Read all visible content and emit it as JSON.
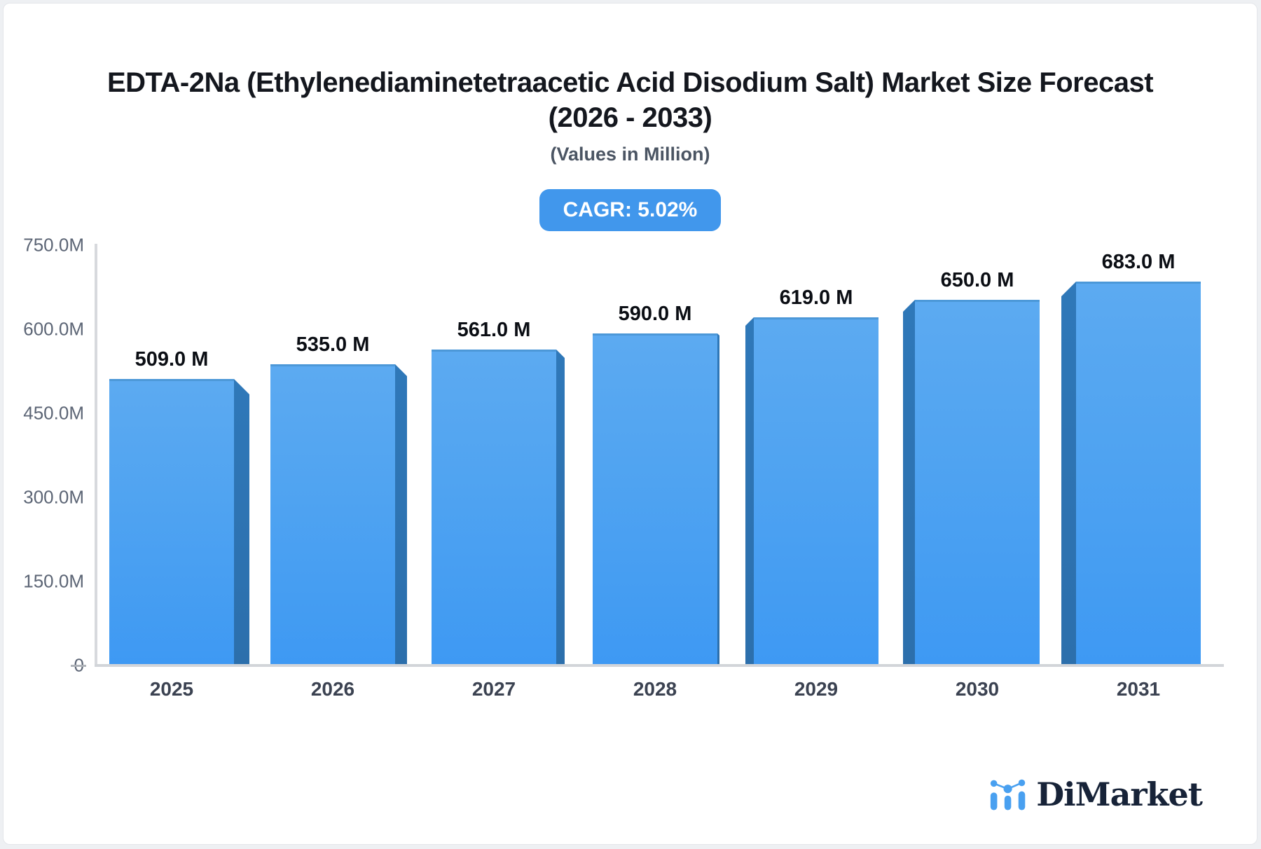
{
  "page": {
    "background": "#eef0f3",
    "card_background": "#ffffff"
  },
  "header": {
    "title_line1": "EDTA-2Na (Ethylenediaminetetraacetic Acid Disodium Salt) Market Size Forecast",
    "title_line2": "(2026 - 2033)",
    "subtitle": "(Values in Million)",
    "cagr_badge": "CAGR: 5.02%",
    "cagr_badge_color": "#4197EC"
  },
  "chart_data": {
    "type": "bar",
    "title": "EDTA-2Na (Ethylenediaminetetraacetic Acid Disodium Salt) Market Size Forecast (2026 - 2033)",
    "subtitle": "(Values in Million)",
    "unit": "Million",
    "categories": [
      "2025",
      "2026",
      "2027",
      "2028",
      "2029",
      "2030",
      "2031"
    ],
    "values": [
      509,
      535,
      561,
      590,
      619,
      650,
      683
    ],
    "bar_labels": [
      "509.0 M",
      "535.0 M",
      "561.0 M",
      "590.0 M",
      "619.0 M",
      "650.0 M",
      "683.0 M"
    ],
    "ylim": [
      0,
      750
    ],
    "yticks": [
      {
        "value": 0,
        "label": "0"
      },
      {
        "value": 150,
        "label": "150.0M"
      },
      {
        "value": 300,
        "label": "300.0M"
      },
      {
        "value": 450,
        "label": "450.0M"
      },
      {
        "value": 600,
        "label": "600.0M"
      },
      {
        "value": 750,
        "label": "750.0M"
      }
    ],
    "grid": false,
    "legend": false,
    "bar_face_color_top": "#5CAAF1",
    "bar_face_color_bottom": "#3E99F3",
    "bar_side_color": "#2E74B2",
    "axis_color": "#D7D9DD",
    "tick_label_color": "#5C6575",
    "category_label_color": "#3B4251",
    "value_label_color": "#0B0E14"
  },
  "branding": {
    "logo_text": "DiMarket",
    "logo_icon": "mini-bar-chart-icon",
    "logo_text_color": "#172338",
    "logo_icon_color": "#49A0F0"
  }
}
